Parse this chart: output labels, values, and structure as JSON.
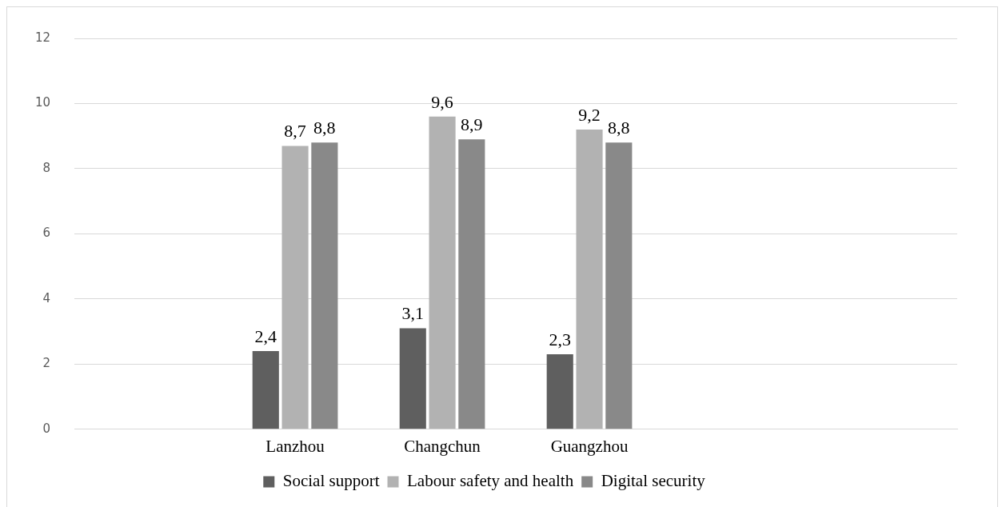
{
  "chart_data": {
    "type": "bar",
    "categories": [
      null,
      "Lanzhou",
      "Changchun",
      "Guangzhou",
      null,
      null
    ],
    "series": [
      {
        "name": "Social support",
        "color": "#5f5f5f",
        "values": [
          null,
          2.4,
          3.1,
          2.3,
          null,
          null
        ],
        "value_labels": [
          null,
          "2,4",
          "3,1",
          "2,3",
          null,
          null
        ]
      },
      {
        "name": "Labour safety and health",
        "color": "#b2b2b2",
        "values": [
          null,
          8.7,
          9.6,
          9.2,
          null,
          null
        ],
        "value_labels": [
          null,
          "8,7",
          "9,6",
          "9,2",
          null,
          null
        ]
      },
      {
        "name": "Digital security",
        "color": "#898989",
        "values": [
          null,
          8.8,
          8.9,
          8.8,
          null,
          null
        ],
        "value_labels": [
          null,
          "8,8",
          "8,9",
          "8,8",
          null,
          null
        ]
      }
    ],
    "ylim": [
      0,
      12
    ],
    "yticks": [
      0,
      2,
      4,
      6,
      8,
      10,
      12
    ],
    "grid": "y",
    "legend": "bottom"
  }
}
